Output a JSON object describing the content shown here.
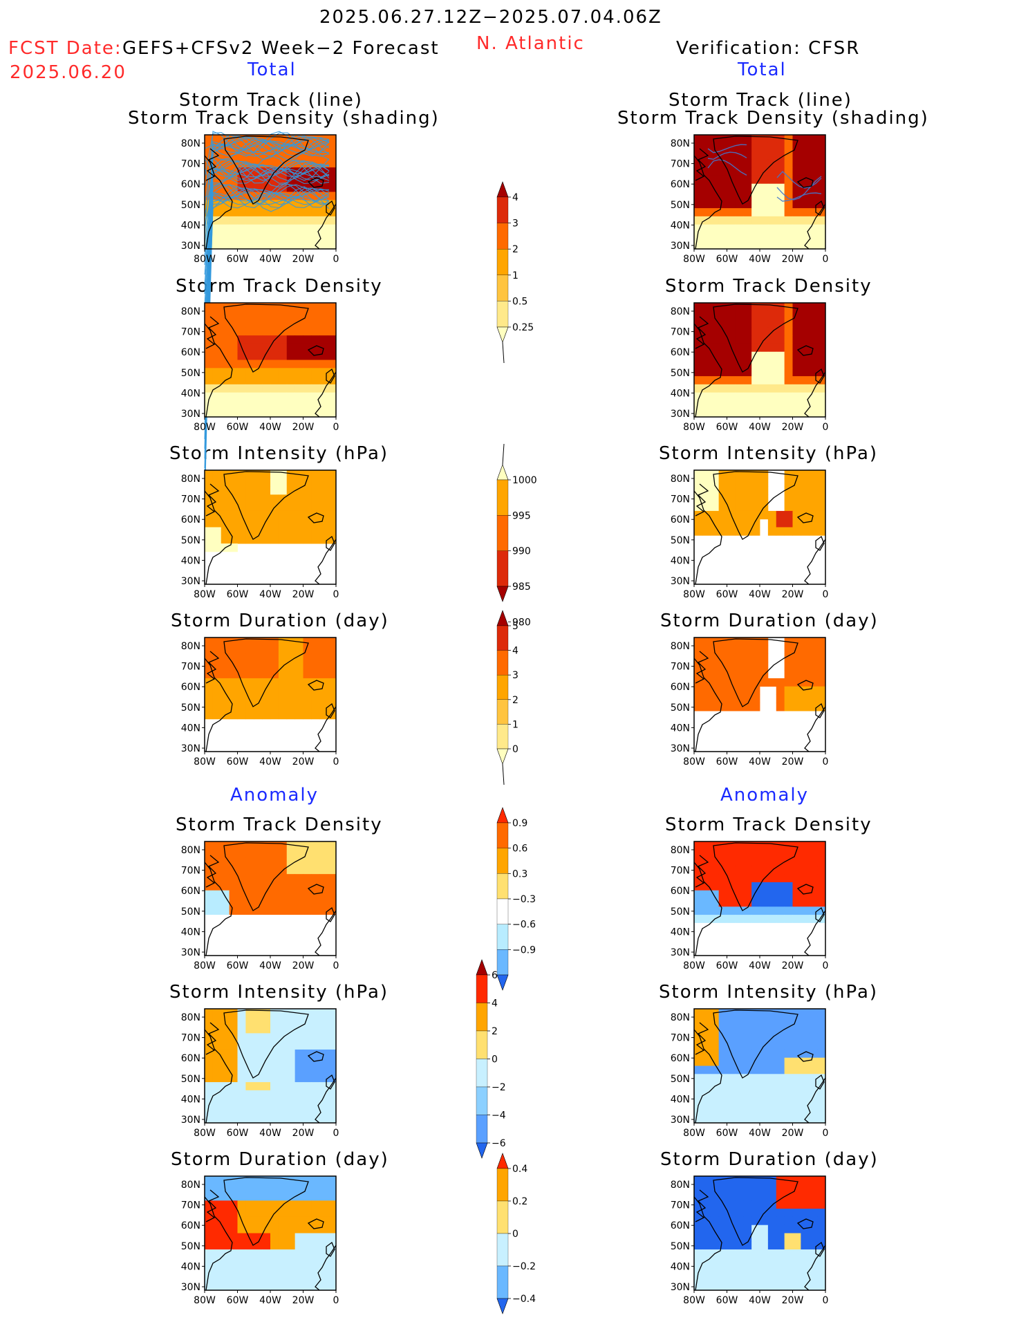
{
  "header": {
    "date_range": "2025.06.27.12Z−2025.07.04.06Z",
    "fcst_label": "FCST Date:",
    "fcst_model": "GEFS+CFSv2 Week−2 Forecast",
    "fcst_date": "2025.06.20",
    "region": "N. Atlantic",
    "verification": "Verification: CFSR",
    "total_left": "Total",
    "total_right": "Total",
    "anomaly_left": "Anomaly",
    "anomaly_right": "Anomaly"
  },
  "panel_titles": {
    "track_line": "Storm Track (line)",
    "track_shading": "Storm Track Density (shading)",
    "density": "Storm Track Density",
    "intensity": "Storm Intensity (hPa)",
    "duration": "Storm Duration (day)"
  },
  "axes": {
    "lat_labels": [
      "80N",
      "70N",
      "60N",
      "50N",
      "40N",
      "30N"
    ],
    "lon_labels": [
      "80W",
      "60W",
      "40W",
      "20W",
      "0"
    ]
  },
  "colorbars": {
    "density": {
      "levels": [
        "4",
        "3",
        "2",
        "1",
        "0.5",
        "0.25"
      ],
      "colors": [
        "#a50000",
        "#dd2a0a",
        "#ff6a00",
        "#ffa500",
        "#ffc440",
        "#ffe98a",
        "#ffffc0"
      ]
    },
    "intensity": {
      "levels": [
        "1000",
        "995",
        "990",
        "985",
        "980"
      ],
      "colors": [
        "#ffffc0",
        "#ffa500",
        "#ff6a00",
        "#dd2a0a",
        "#a50000"
      ]
    },
    "duration": {
      "levels": [
        "5",
        "4",
        "3",
        "2",
        "1",
        "0"
      ],
      "colors": [
        "#a50000",
        "#dd2a0a",
        "#ff6a00",
        "#ffa500",
        "#ffc440",
        "#ffe98a",
        "#ffffc0"
      ]
    },
    "anom_density": {
      "levels": [
        "0.9",
        "0.6",
        "0.3",
        "−0.3",
        "−0.6",
        "−0.9"
      ],
      "colors": [
        "#ff2a00",
        "#ff6a00",
        "#ffa500",
        "#ffe070",
        "#ffffff",
        "#b8ecff",
        "#6ab8ff",
        "#2266ee"
      ]
    },
    "anom_intensity": {
      "levels": [
        "6",
        "4",
        "2",
        "0",
        "−2",
        "−4",
        "−6"
      ],
      "colors": [
        "#a50000",
        "#ff2a00",
        "#ffa500",
        "#ffe070",
        "#c8f0ff",
        "#8cd0ff",
        "#5aa0ff",
        "#2266ee"
      ]
    },
    "anom_duration": {
      "levels": [
        "0.4",
        "0.2",
        "0",
        "−0.2",
        "−0.4"
      ],
      "colors": [
        "#ff2a00",
        "#ffa500",
        "#ffe070",
        "#c8f0ff",
        "#6ab8ff",
        "#2266ee"
      ]
    }
  },
  "colors": {
    "title_red": "#ff2a2a",
    "section_blue": "#1a2aff",
    "track_line_blue": "#3399dd",
    "ocean_white": "#ffffff"
  }
}
